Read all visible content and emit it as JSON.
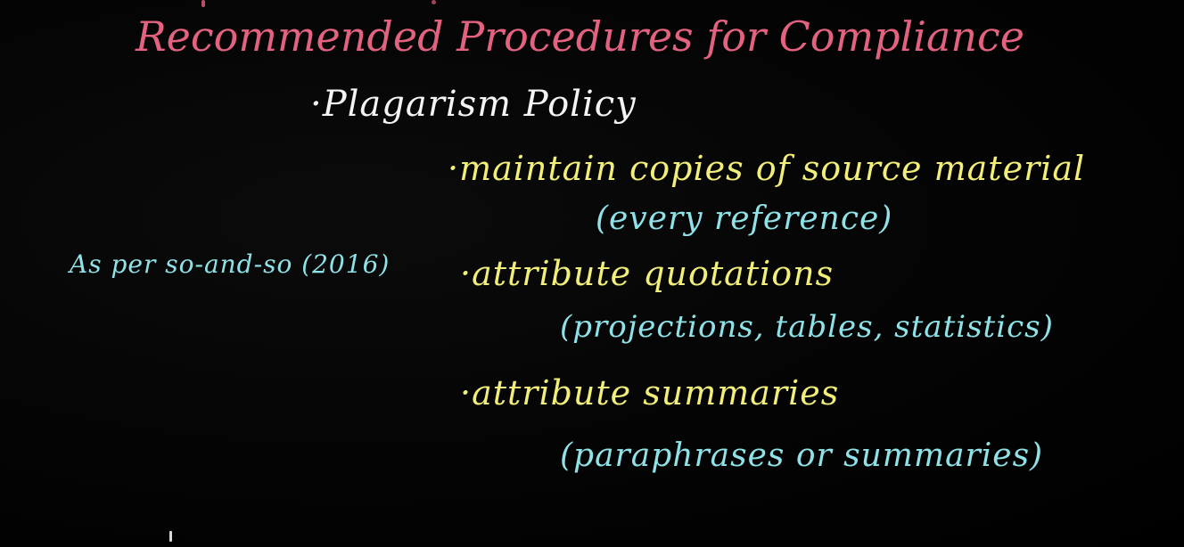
{
  "colors": {
    "background": "#000000",
    "title": "#e2627f",
    "heading": "#f4f4f4",
    "bullets": "#f1ee79",
    "notes": "#8fe3e8"
  },
  "board": {
    "title": "Recommended Procedures for Compliance",
    "heading": "·Plagarism Policy",
    "items": [
      {
        "text": "·maintain copies of source material",
        "detail": "(every reference)"
      },
      {
        "text": "·attribute quotations",
        "detail": "(projections, tables, statistics)"
      },
      {
        "text": "·attribute summaries",
        "detail": "(paraphrases or summaries)"
      }
    ],
    "side_note": "As per so-and-so (2016)"
  }
}
